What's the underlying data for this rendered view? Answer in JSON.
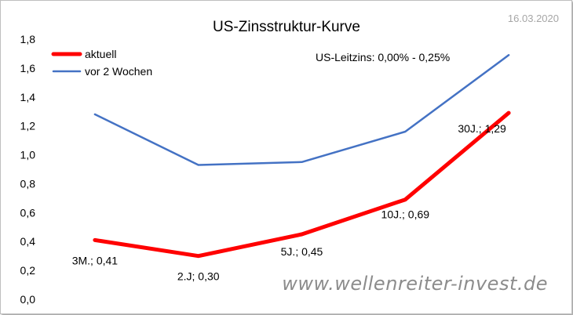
{
  "date": "16.03.2020",
  "watermark": "www.wellenreiter-invest.de",
  "chart_data": {
    "type": "line",
    "title": "US-Zinsstruktur-Kurve",
    "annotation": "US-Leitzins: 0,00% - 0,25%",
    "categories": [
      "3M.",
      "2.J",
      "5J.",
      "10J.",
      "30J."
    ],
    "ylim": [
      0,
      1.8
    ],
    "yticks": [
      "0,0",
      "0,2",
      "0,4",
      "0,6",
      "0,8",
      "1,0",
      "1,2",
      "1,4",
      "1,6",
      "1,8"
    ],
    "grid": false,
    "legend_position": "top-left",
    "series": [
      {
        "name": "aktuell",
        "color": "#ff0000",
        "values": [
          0.41,
          0.3,
          0.45,
          0.69,
          1.29
        ],
        "labels": [
          "3M.; 0,41",
          "2.J; 0,30",
          "5J.; 0,45",
          "10J.; 0,69",
          "30J.; 1,29"
        ]
      },
      {
        "name": "vor 2 Wochen",
        "color": "#4472c4",
        "values": [
          1.28,
          0.93,
          0.95,
          1.16,
          1.69
        ]
      }
    ]
  }
}
